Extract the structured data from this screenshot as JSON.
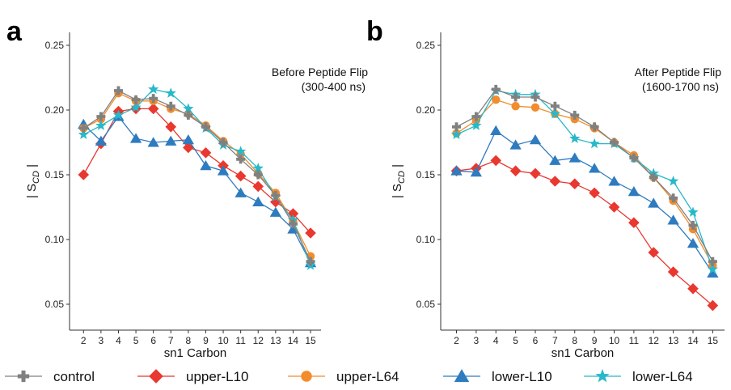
{
  "colors": {
    "control": "#808080",
    "upper-L10": "#E8382F",
    "upper-L64": "#F28C2C",
    "lower-L10": "#2E7BBF",
    "lower-L64": "#27B8C9"
  },
  "legend": [
    {
      "key": "control",
      "label": "control",
      "marker": "plus"
    },
    {
      "key": "upper-L10",
      "label": "upper-L10",
      "marker": "diamond"
    },
    {
      "key": "upper-L64",
      "label": "upper-L64",
      "marker": "circle"
    },
    {
      "key": "lower-L10",
      "label": "lower-L10",
      "marker": "triangle"
    },
    {
      "key": "lower-L64",
      "label": "lower-L64",
      "marker": "star"
    }
  ],
  "chart_data": [
    {
      "type": "line",
      "panel_label": "a",
      "annotation_line1": "Before Peptide Flip",
      "annotation_line2": "(300-400 ns)",
      "xlabel": "sn1 Carbon",
      "ylabel_pre": "| S",
      "ylabel_sub": "CD",
      "ylabel_post": " |",
      "x": [
        2,
        3,
        4,
        5,
        6,
        7,
        8,
        9,
        10,
        11,
        12,
        13,
        14,
        15
      ],
      "xlim": [
        1.2,
        15.6
      ],
      "ylim": [
        0.03,
        0.26
      ],
      "yticks": [
        0.05,
        0.1,
        0.15,
        0.2,
        0.25
      ],
      "ytick_labels": [
        "0.05",
        "0.10",
        "0.15",
        "0.20",
        "0.25"
      ],
      "series": [
        {
          "name": "control",
          "values": [
            0.186,
            0.195,
            0.215,
            0.208,
            0.209,
            0.203,
            0.196,
            0.187,
            0.175,
            0.162,
            0.15,
            0.134,
            0.112,
            0.083
          ]
        },
        {
          "name": "upper-L10",
          "values": [
            0.15,
            0.174,
            0.199,
            0.201,
            0.201,
            0.187,
            0.171,
            0.167,
            0.157,
            0.149,
            0.141,
            0.129,
            0.12,
            0.105
          ]
        },
        {
          "name": "upper-L64",
          "values": [
            0.186,
            0.193,
            0.213,
            0.207,
            0.207,
            0.201,
            0.197,
            0.188,
            0.176,
            0.166,
            0.151,
            0.136,
            0.114,
            0.087
          ]
        },
        {
          "name": "lower-L10",
          "values": [
            0.189,
            0.176,
            0.195,
            0.178,
            0.175,
            0.176,
            0.177,
            0.157,
            0.153,
            0.136,
            0.129,
            0.121,
            0.108,
            0.082
          ]
        },
        {
          "name": "lower-L64",
          "values": [
            0.181,
            0.188,
            0.196,
            0.202,
            0.216,
            0.213,
            0.201,
            0.186,
            0.173,
            0.168,
            0.155,
            0.133,
            0.115,
            0.08
          ]
        }
      ]
    },
    {
      "type": "line",
      "panel_label": "b",
      "annotation_line1": "After Peptide Flip",
      "annotation_line2": "(1600-1700 ns)",
      "xlabel": "sn1 Carbon",
      "ylabel_pre": "| S",
      "ylabel_sub": "CD",
      "ylabel_post": " |",
      "x": [
        2,
        3,
        4,
        5,
        6,
        7,
        8,
        9,
        10,
        11,
        12,
        13,
        14,
        15
      ],
      "xlim": [
        1.2,
        15.6
      ],
      "ylim": [
        0.03,
        0.26
      ],
      "yticks": [
        0.05,
        0.1,
        0.15,
        0.2,
        0.25
      ],
      "ytick_labels": [
        "0.05",
        "0.10",
        "0.15",
        "0.20",
        "0.25"
      ],
      "series": [
        {
          "name": "control",
          "values": [
            0.187,
            0.195,
            0.216,
            0.21,
            0.21,
            0.203,
            0.196,
            0.187,
            0.175,
            0.163,
            0.148,
            0.132,
            0.111,
            0.083
          ]
        },
        {
          "name": "upper-L10",
          "values": [
            0.153,
            0.155,
            0.161,
            0.153,
            0.151,
            0.145,
            0.143,
            0.136,
            0.125,
            0.113,
            0.09,
            0.075,
            0.062,
            0.049
          ]
        },
        {
          "name": "upper-L64",
          "values": [
            0.182,
            0.192,
            0.208,
            0.203,
            0.202,
            0.197,
            0.193,
            0.186,
            0.175,
            0.165,
            0.148,
            0.13,
            0.108,
            0.08
          ]
        },
        {
          "name": "lower-L10",
          "values": [
            0.153,
            0.152,
            0.184,
            0.173,
            0.177,
            0.161,
            0.163,
            0.155,
            0.145,
            0.137,
            0.128,
            0.115,
            0.097,
            0.074
          ]
        },
        {
          "name": "lower-L64",
          "values": [
            0.181,
            0.188,
            0.215,
            0.212,
            0.212,
            0.197,
            0.178,
            0.174,
            0.174,
            0.163,
            0.151,
            0.145,
            0.121,
            0.077
          ]
        }
      ]
    }
  ]
}
